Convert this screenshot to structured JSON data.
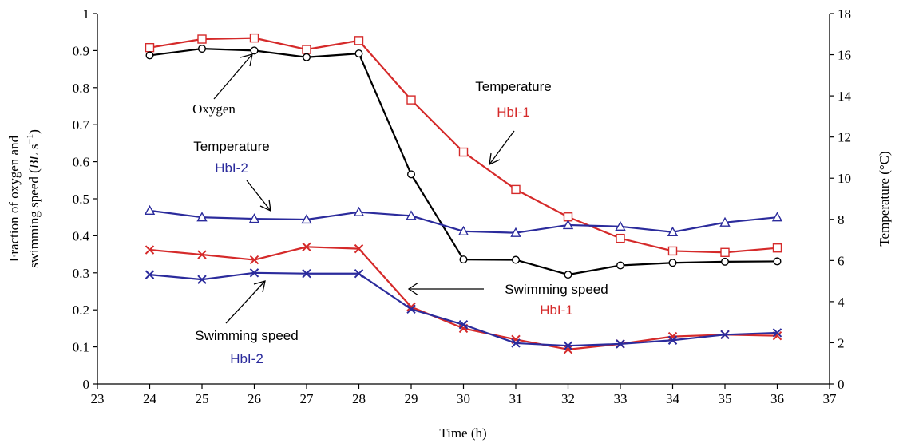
{
  "chart_data": {
    "type": "line",
    "xlabel": "Time (h)",
    "ylabel_left_line1": "Fraction of oxygen and",
    "ylabel_left_line2_prefix": "swimming speed (",
    "ylabel_left_line2_italic": "BL",
    "ylabel_left_line2_mid": " s",
    "ylabel_left_line2_sup": "−1",
    "ylabel_left_line2_suffix": ")",
    "ylabel_right": "Temperature (°C)",
    "xlim": [
      23,
      37
    ],
    "ylim_left": [
      0,
      1
    ],
    "ylim_right": [
      0,
      18
    ],
    "x_ticks": [
      "23",
      "24",
      "25",
      "26",
      "27",
      "28",
      "29",
      "30",
      "31",
      "32",
      "33",
      "34",
      "35",
      "36",
      "37"
    ],
    "y_left_ticks": [
      "0",
      "0.1",
      "0.2",
      "0.3",
      "0.4",
      "0.5",
      "0.6",
      "0.7",
      "0.8",
      "0.9",
      "1"
    ],
    "y_right_ticks": [
      "0",
      "2",
      "4",
      "6",
      "8",
      "10",
      "12",
      "14",
      "16",
      "18"
    ],
    "x": [
      24,
      25,
      26,
      27,
      28,
      29,
      30,
      31,
      32,
      33,
      34,
      35,
      36
    ],
    "series": [
      {
        "color": "#d52a2a",
        "marker": "square",
        "axis": "left",
        "values": [
          0.908,
          0.931,
          0.934,
          0.903,
          0.927,
          0.767,
          0.626,
          0.525,
          0.451,
          0.393,
          0.359,
          0.355,
          0.367
        ]
      },
      {
        "color": "#000000",
        "marker": "circle",
        "axis": "left",
        "values": [
          0.887,
          0.905,
          0.9,
          0.882,
          0.892,
          0.566,
          0.336,
          0.335,
          0.295,
          0.32,
          0.327,
          0.33,
          0.331
        ]
      },
      {
        "color": "#2b2b9c",
        "marker": "triangle",
        "axis": "left",
        "values": [
          0.468,
          0.45,
          0.446,
          0.444,
          0.464,
          0.454,
          0.412,
          0.408,
          0.429,
          0.425,
          0.41,
          0.436,
          0.45
        ]
      },
      {
        "color": "#d52a2a",
        "marker": "x",
        "axis": "left",
        "values": [
          0.362,
          0.349,
          0.335,
          0.37,
          0.365,
          0.208,
          0.15,
          0.12,
          0.093,
          0.108,
          0.128,
          0.133,
          0.13
        ]
      },
      {
        "color": "#2b2b9c",
        "marker": "x",
        "axis": "left",
        "values": [
          0.295,
          0.282,
          0.3,
          0.298,
          0.298,
          0.202,
          0.16,
          0.11,
          0.103,
          0.108,
          0.118,
          0.133,
          0.138
        ]
      }
    ],
    "annotations": [
      {
        "text": "Oxygen",
        "color": "#000000"
      },
      {
        "text": "Temperature",
        "color": "#000000"
      },
      {
        "text": "HbI-1",
        "color": "#d52a2a"
      },
      {
        "text": "Temperature",
        "color": "#000000"
      },
      {
        "text": "HbI-2",
        "color": "#2b2b9c"
      },
      {
        "text": "Swimming speed",
        "color": "#000000"
      },
      {
        "text": "HbI-1",
        "color": "#d52a2a"
      },
      {
        "text": "Swimming speed",
        "color": "#000000"
      },
      {
        "text": "HbI-2",
        "color": "#2b2b9c"
      }
    ],
    "grid": false
  }
}
